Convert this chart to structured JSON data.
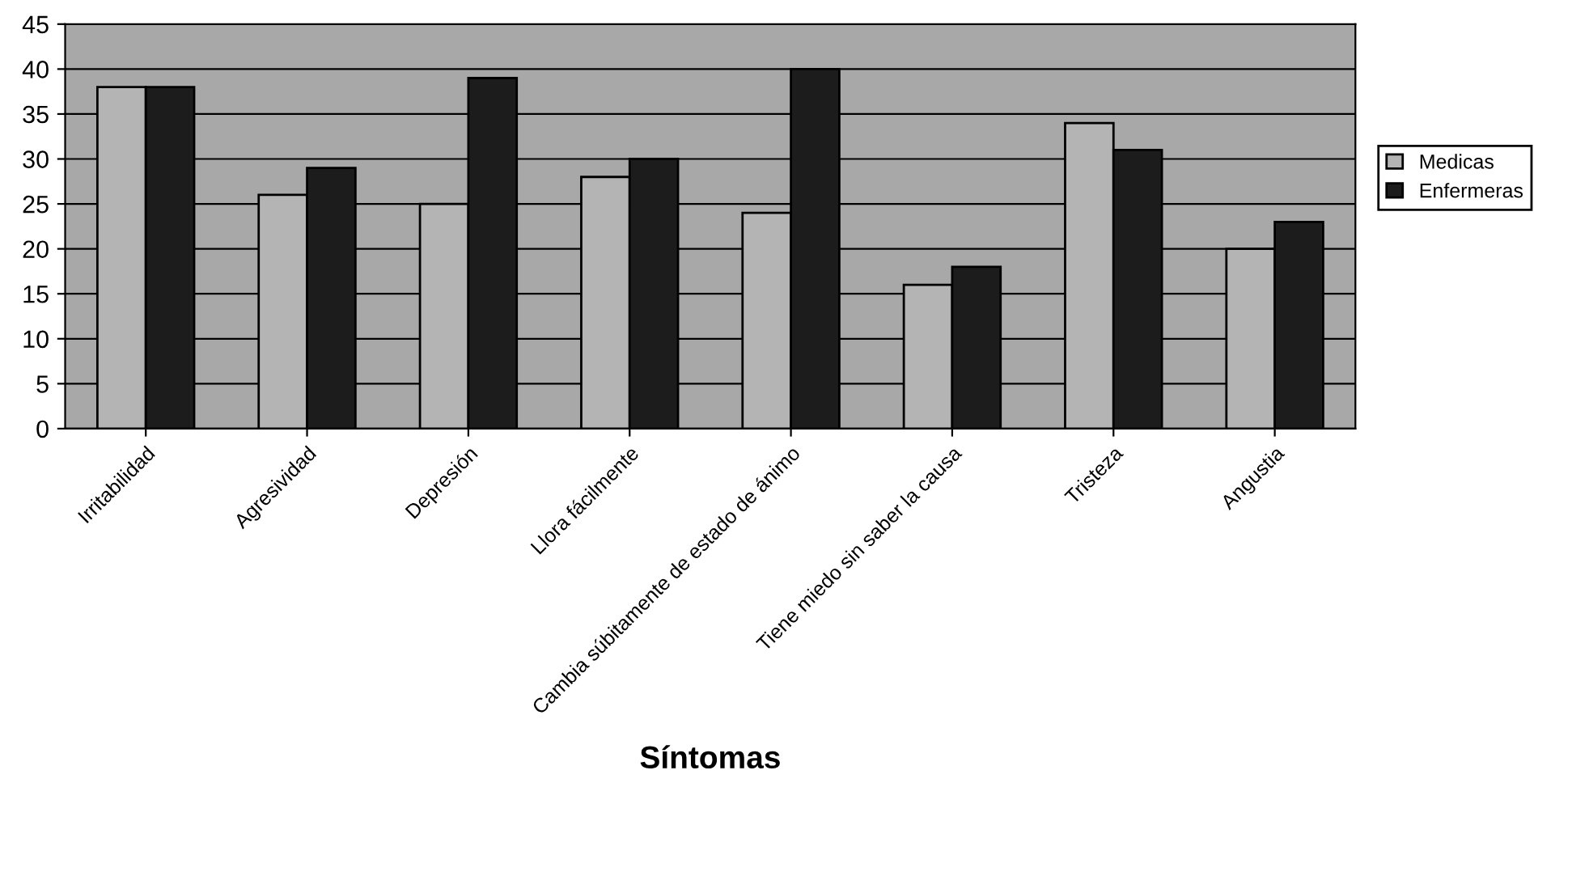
{
  "chart_data": {
    "type": "bar",
    "xlabel": "Síntomas",
    "categories": [
      "Irritabilidad",
      "Agresividad",
      "Depresión",
      "Llora fácilmente",
      "Cambia súbitamente de estado de ánimo",
      "Tiene miedo sin saber la causa",
      "Tristeza",
      "Angustia"
    ],
    "series": [
      {
        "name": "Medicas",
        "color": "#b4b4b4",
        "values": [
          38,
          26,
          25,
          28,
          24,
          16,
          34,
          20
        ]
      },
      {
        "name": "Enfermeras",
        "color": "#1c1c1c",
        "values": [
          38,
          29,
          39,
          30,
          40,
          18,
          31,
          23
        ]
      }
    ],
    "ylim": [
      0,
      45
    ],
    "yticks": [
      0,
      5,
      10,
      15,
      20,
      25,
      30,
      35,
      40,
      45
    ],
    "grid": "y",
    "legend": "right"
  }
}
